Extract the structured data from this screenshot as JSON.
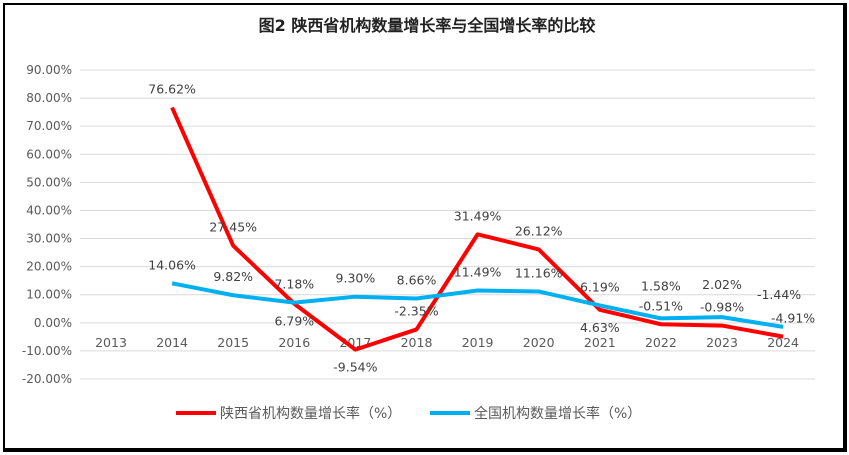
{
  "chart_data": {
    "type": "line",
    "title": "图2  陕西省机构数量增长率与全国增长率的比较",
    "xlabel": "",
    "ylabel": "",
    "categories": [
      "2013",
      "2014",
      "2015",
      "2016",
      "2017",
      "2018",
      "2019",
      "2020",
      "2021",
      "2022",
      "2023",
      "2024"
    ],
    "ylim": [
      -20,
      90
    ],
    "yticks": [
      "90.00%",
      "80.00%",
      "70.00%",
      "60.00%",
      "50.00%",
      "40.00%",
      "30.00%",
      "20.00%",
      "10.00%",
      "0.00%",
      "-10.00%",
      "-20.00%"
    ],
    "grid": true,
    "legend_position": "bottom",
    "series": [
      {
        "name": "陕西省机构数量增长率（%）",
        "color": "#FF0000",
        "values": [
          null,
          76.62,
          27.45,
          6.79,
          -9.54,
          -2.35,
          31.49,
          26.12,
          4.63,
          -0.51,
          -0.98,
          -4.91
        ],
        "labels": [
          "",
          "76.62%",
          "27.45%",
          "6.79%",
          "-9.54%",
          "-2.35%",
          "31.49%",
          "26.12%",
          "4.63%",
          "-0.51%",
          "-0.98%",
          "-4.91%"
        ]
      },
      {
        "name": "全国机构数量增长率（%）",
        "color": "#00B0F0",
        "values": [
          null,
          14.06,
          9.82,
          7.18,
          9.3,
          8.66,
          11.49,
          11.16,
          6.19,
          1.58,
          2.02,
          -1.44
        ],
        "labels": [
          "",
          "14.06%",
          "9.82%",
          "7.18%",
          "9.30%",
          "8.66%",
          "11.49%",
          "11.16%",
          "6.19%",
          "1.58%",
          "2.02%",
          "-1.44%"
        ]
      }
    ]
  }
}
